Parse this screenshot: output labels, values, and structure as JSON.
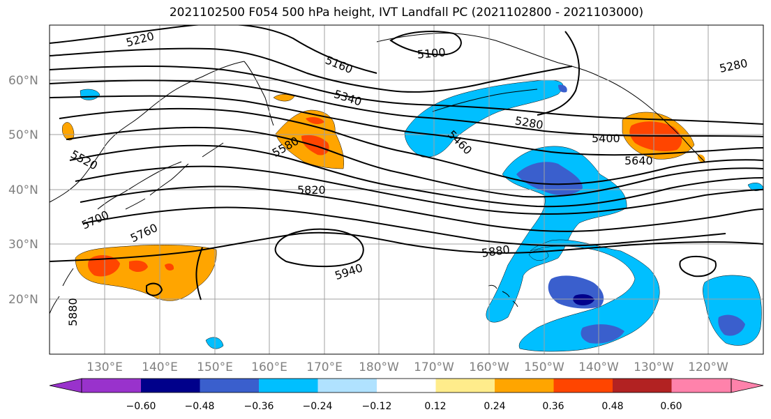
{
  "title": "2021102500 F054 500 hPa height, IVT Landfall PC (2021102800 - 2021103000)",
  "map": {
    "lon_ticks": [
      "130°E",
      "140°E",
      "150°E",
      "160°E",
      "170°E",
      "180°W",
      "170°W",
      "160°W",
      "150°W",
      "140°W",
      "130°W",
      "120°W"
    ],
    "lat_ticks": [
      "60°N",
      "50°N",
      "40°N",
      "30°N",
      "20°N"
    ],
    "contour_labels": [
      "5220",
      "5100",
      "5160",
      "5280",
      "5340",
      "5280",
      "5400",
      "5640",
      "5460",
      "5580",
      "5520",
      "5820",
      "5700",
      "5760",
      "5940",
      "5880",
      "5880"
    ],
    "fill_colors": {
      "positive_light": "#ffa500",
      "positive_mid": "#ff4500",
      "negative_light": "#00bfff",
      "negative_mid": "#3a5fcd",
      "negative_dark": "#00008b",
      "land": "#ffffff",
      "ocean": "#ffffff",
      "grid": "#a0a0a0"
    }
  },
  "colorbar": {
    "colors": [
      "#9932cc",
      "#00008b",
      "#3a5fcd",
      "#00bfff",
      "#b0e2ff",
      "#ffffff",
      "#ffec8b",
      "#ffa500",
      "#ff4500",
      "#b22222",
      "#ff82ab"
    ],
    "tick_labels": [
      "−0.60",
      "−0.48",
      "−0.36",
      "−0.24",
      "−0.12",
      "0.12",
      "0.24",
      "0.36",
      "0.48",
      "0.60"
    ]
  }
}
